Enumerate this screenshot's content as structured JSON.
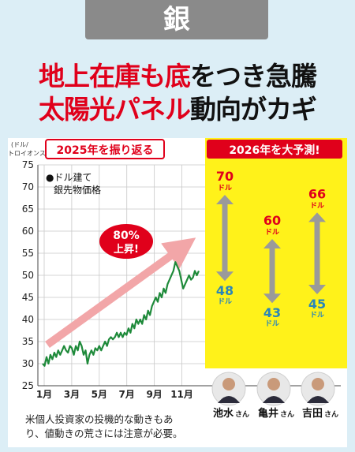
{
  "header": {
    "category": "銀",
    "headline_line1": {
      "red": "地上在庫も底",
      "black": "をつき急騰"
    },
    "headline_line2": {
      "red": "太陽光パネル",
      "black": "動向がカギ"
    }
  },
  "chart_data": {
    "type": "line",
    "section_label": "2025年を振り返る",
    "ylabel_top": "(ドル/",
    "ylabel_bottom": "トロイオンス)",
    "ylim": [
      25,
      75
    ],
    "yticks": [
      "75",
      "70",
      "65",
      "60",
      "55",
      "50",
      "45",
      "40",
      "35",
      "30",
      "25"
    ],
    "xticks": [
      "1月",
      "3月",
      "5月",
      "7月",
      "9月",
      "11月"
    ],
    "legend": "●ドル建て",
    "legend_line2": "銀先物価格",
    "callout": "80%",
    "callout_line2": "上昇!",
    "series": [
      {
        "values": [
          30,
          29.5,
          31.5,
          30,
          32,
          31,
          32.5,
          31.5,
          33,
          32,
          33,
          34,
          33,
          32.5,
          34,
          33.5,
          32,
          34,
          33,
          35,
          34,
          32,
          33,
          30,
          32,
          33,
          32,
          33.5,
          33,
          34,
          33,
          34,
          35,
          34,
          35.5,
          36,
          35.5,
          36,
          37,
          36,
          37,
          36,
          37,
          36.5,
          38,
          37,
          39,
          38,
          40,
          39,
          40,
          39,
          41,
          40,
          42,
          41,
          43,
          44,
          45,
          44,
          46,
          45,
          47,
          46,
          48,
          49,
          50,
          51,
          53,
          52,
          51,
          49,
          47,
          48,
          49,
          50,
          49,
          49.5,
          51,
          50,
          51
        ]
      }
    ]
  },
  "forecast": {
    "label": "2026年を大予測!",
    "unit": "ドル",
    "analysts": [
      {
        "high": "70",
        "low": "48",
        "name": "池水",
        "suffix": "さん"
      },
      {
        "high": "60",
        "low": "43",
        "name": "亀井",
        "suffix": "さん"
      },
      {
        "high": "66",
        "low": "45",
        "name": "吉田",
        "suffix": "さん"
      }
    ]
  },
  "note": {
    "line1": "米個人投資家の投機的な動きもあ",
    "line2": "り、値動きの荒さには注意が必要。"
  },
  "colors": {
    "accent_red": "#e0001b",
    "forecast_yellow": "#fff21a",
    "line_green": "#1e8a3a",
    "arrow_pink": "#f2a6a8",
    "forecast_blue": "#2a86b9",
    "range_gray": "#9a9a9a"
  }
}
